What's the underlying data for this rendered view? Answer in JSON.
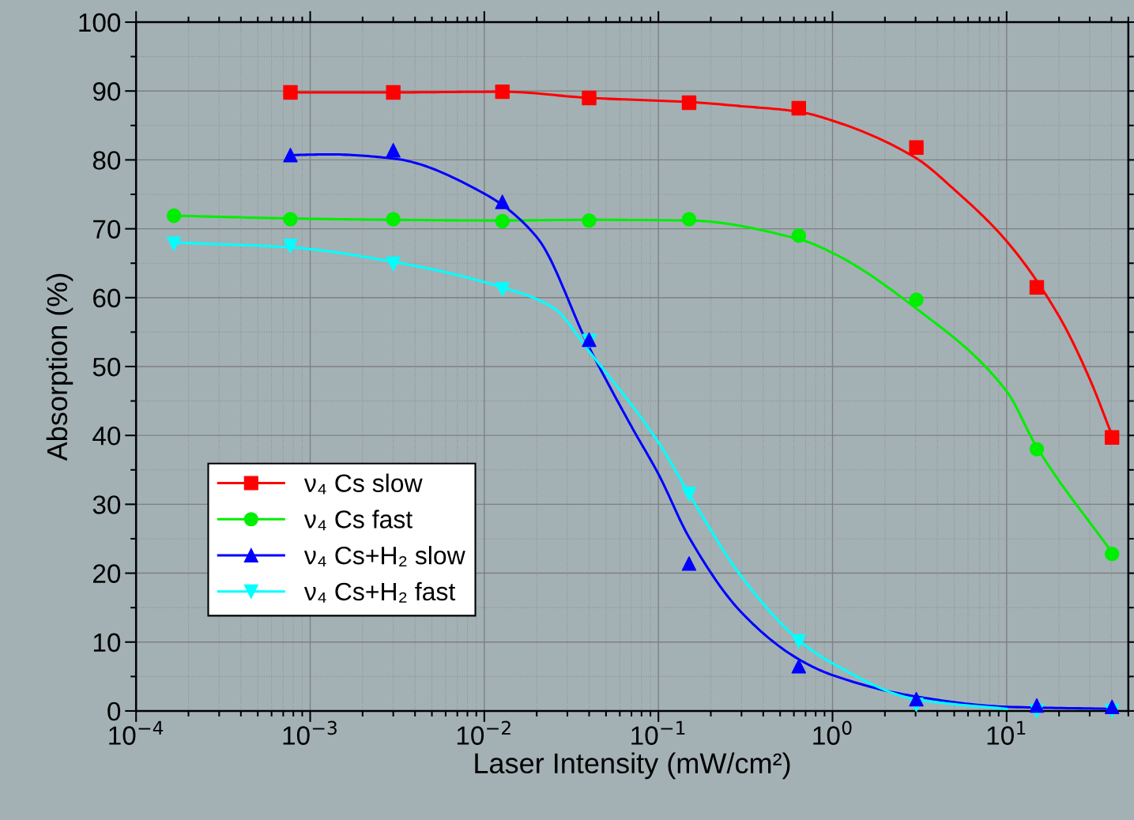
{
  "chart_data": {
    "type": "scatter",
    "xlabel": "Laser Intensity (mW/cm²)",
    "ylabel": "Absorption (%)",
    "log": "x",
    "xlim": [
      0.0001,
      50
    ],
    "ylim": [
      0,
      100
    ],
    "xticks": [
      {
        "value": 0.0001,
        "label": "10$^{−4}$"
      },
      {
        "value": 0.001,
        "label": "10$^{−3}$"
      },
      {
        "value": 0.01,
        "label": "10$^{−2}$"
      },
      {
        "value": 0.1,
        "label": "10$^{−1}$"
      },
      {
        "value": 1,
        "label": "10$^{0}$"
      },
      {
        "value": 10,
        "label": "10$^{1}$"
      }
    ],
    "yticks": [
      0,
      10,
      20,
      30,
      40,
      50,
      60,
      70,
      80,
      90,
      100
    ],
    "grid": true,
    "legend": "bottom left",
    "series": [
      {
        "name": "ν₄ Cs slow",
        "marker": "square",
        "color": "#ff0000",
        "x": [
          0.00077,
          0.003,
          0.0127,
          0.04,
          0.15,
          0.64,
          3.03,
          14.9,
          40.3
        ],
        "values": [
          89.8,
          89.8,
          89.9,
          89.0,
          88.3,
          87.5,
          81.8,
          61.5,
          39.7
        ]
      },
      {
        "name": "ν₄ Cs fast",
        "marker": "circle",
        "color": "#00ee00",
        "x": [
          0.000165,
          0.00077,
          0.003,
          0.0127,
          0.04,
          0.15,
          0.64,
          3.03,
          14.9,
          40.3
        ],
        "values": [
          71.9,
          71.4,
          71.4,
          71.1,
          71.2,
          71.4,
          69.0,
          59.7,
          38.0,
          22.8
        ]
      },
      {
        "name": "ν₄ Cs+H₂ slow",
        "marker": "triangle",
        "color": "#0000ff",
        "x": [
          0.00077,
          0.003,
          0.0127,
          0.04,
          0.15,
          0.64,
          3.03,
          14.9,
          40.3
        ],
        "values": [
          80.7,
          81.4,
          73.9,
          53.9,
          21.4,
          6.5,
          1.7,
          0.8,
          0.6
        ]
      },
      {
        "name": "ν₄ Cs+H₂ fast",
        "marker": "triangle_down",
        "color": "#00ffff",
        "x": [
          0.000165,
          0.00077,
          0.003,
          0.0127,
          0.04,
          0.15,
          0.64,
          3.03,
          14.9,
          40.3
        ],
        "values": [
          67.8,
          67.5,
          64.9,
          61.2,
          53.7,
          31.5,
          10.1,
          0.9,
          0,
          0
        ]
      },
      {
        "type": "line",
        "color": "#ff0000",
        "x": [
          0.00077,
          0.003,
          0.0127,
          0.04,
          0.15,
          0.3,
          0.64,
          1,
          3,
          5,
          10,
          20,
          30,
          40.3
        ],
        "values": [
          89.8,
          89.8,
          89.9,
          89.0,
          88.4,
          87.8,
          87.0,
          85.7,
          80.3,
          75.7,
          68.2,
          57.3,
          48.2,
          40.0
        ]
      },
      {
        "type": "line",
        "color": "#00ee00",
        "x": [
          0.000165,
          0.00077,
          0.003,
          0.0127,
          0.04,
          0.15,
          0.64,
          1,
          3,
          10,
          14.9,
          40.3
        ],
        "values": [
          71.9,
          71.5,
          71.3,
          71.2,
          71.3,
          71.2,
          68.5,
          66.5,
          58.5,
          46.4,
          38.3,
          23.0
        ]
      },
      {
        "type": "line",
        "color": "#0000ff",
        "x": [
          0.00077,
          0.0013,
          0.003,
          0.01,
          0.02,
          0.04,
          0.07,
          0.1,
          0.15,
          0.3,
          0.64,
          1,
          3,
          10,
          40.3
        ],
        "values": [
          80.7,
          80.8,
          80.2,
          75.1,
          68.8,
          52.8,
          41.3,
          34.4,
          25.2,
          14.3,
          7.5,
          5.2,
          2.1,
          0.6,
          0.3
        ]
      },
      {
        "type": "line",
        "color": "#00ffff",
        "x": [
          0.000165,
          0.00077,
          0.003,
          0.0127,
          0.025,
          0.04,
          0.1,
          0.15,
          0.3,
          0.64,
          1,
          3,
          10
        ],
        "values": [
          68.0,
          67.3,
          65.2,
          61.5,
          58.5,
          52.2,
          39.0,
          31.5,
          19.5,
          10.3,
          6.9,
          1.7,
          0.3
        ]
      }
    ]
  }
}
